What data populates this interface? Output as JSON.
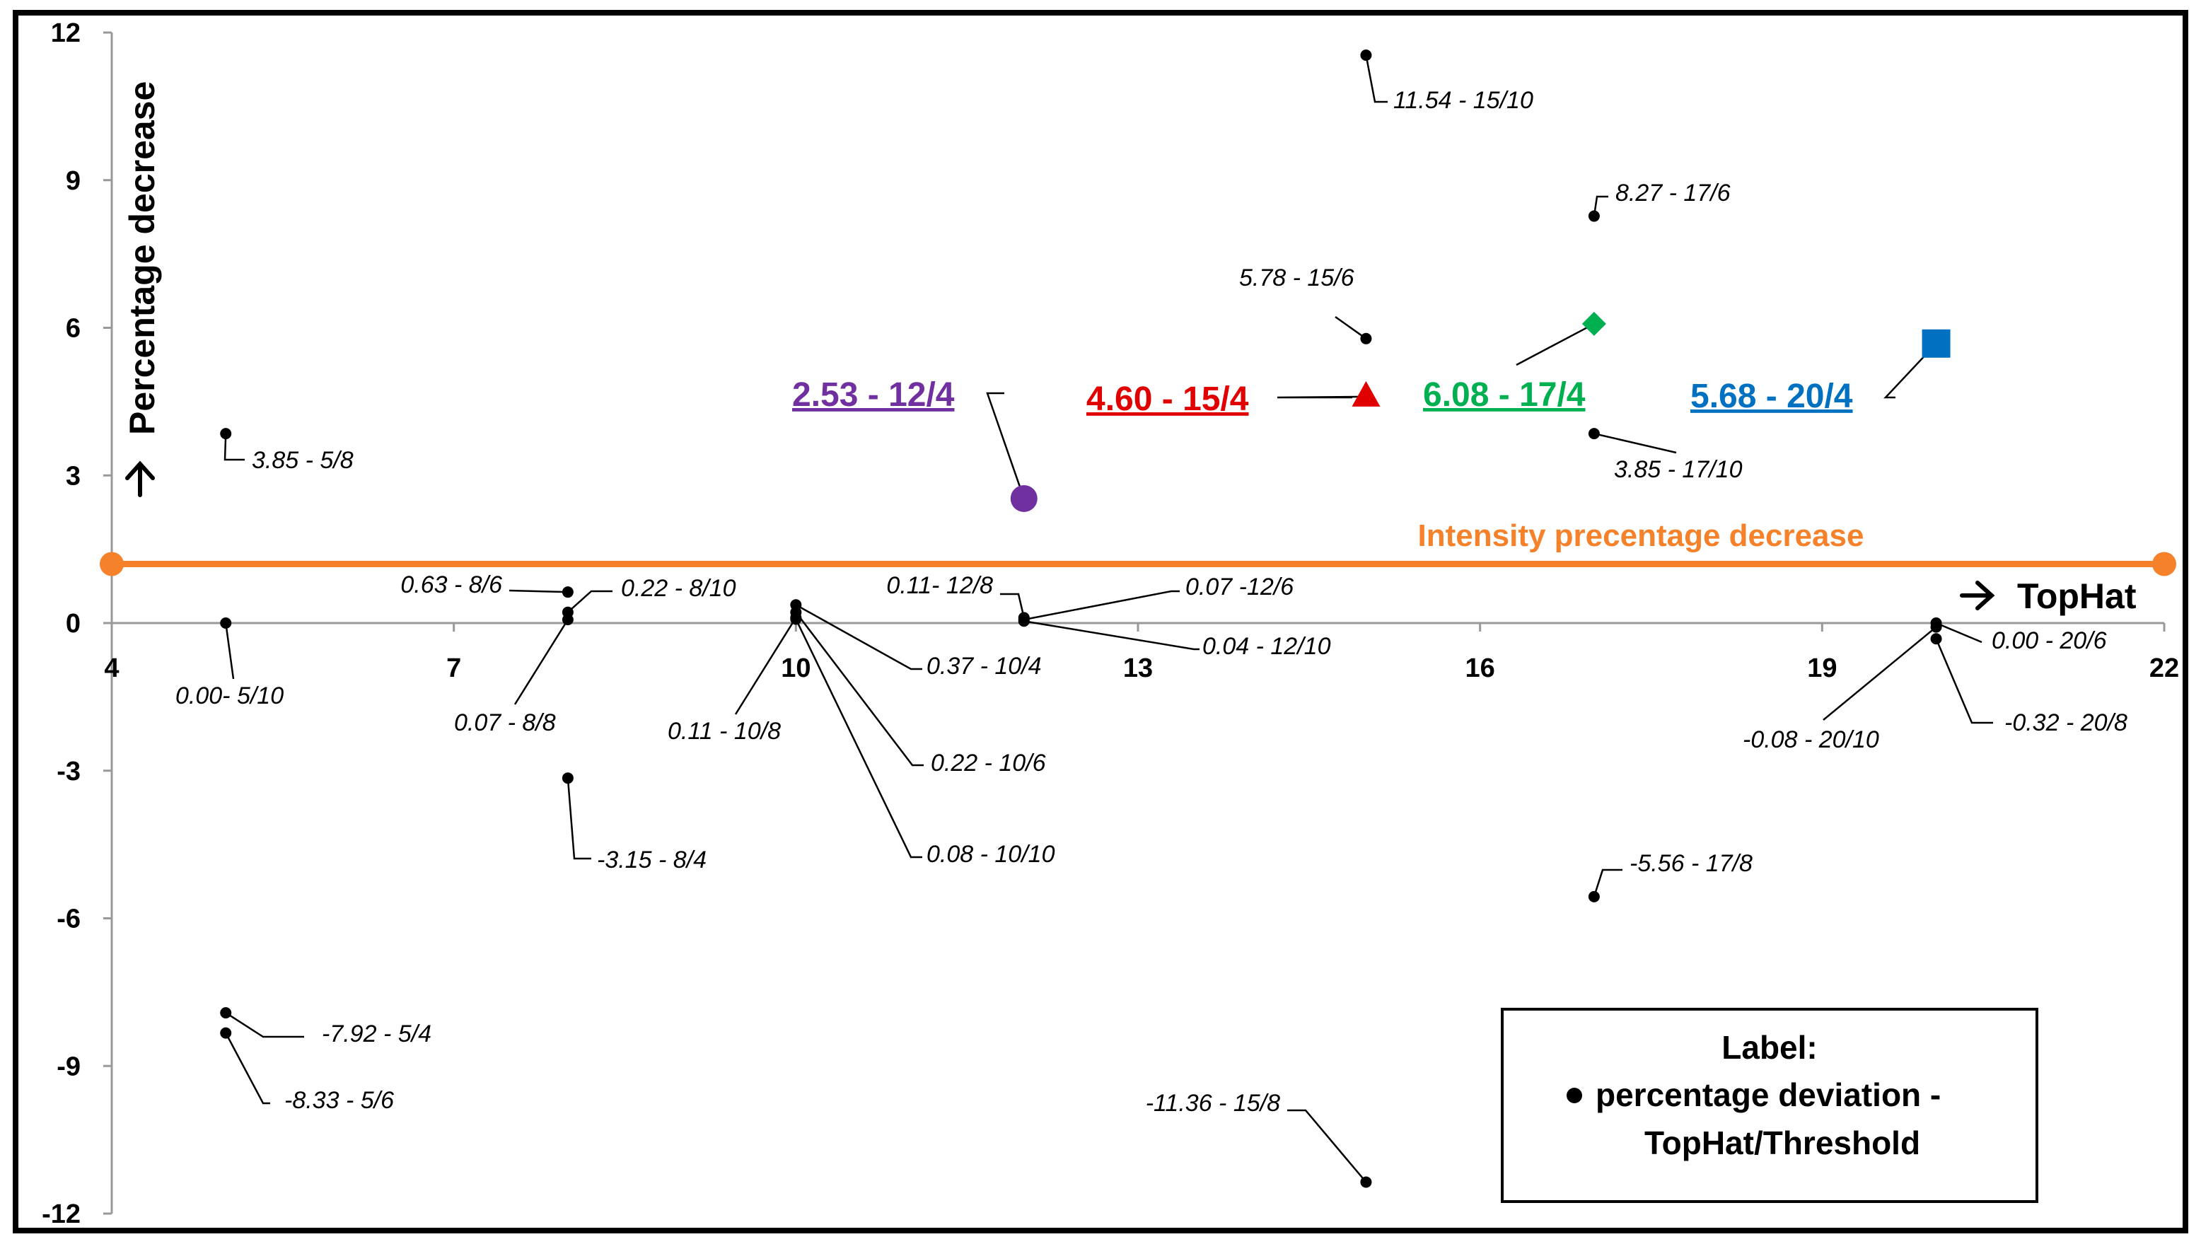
{
  "chart_data": {
    "type": "scatter",
    "title": "",
    "xlabel": "TopHat",
    "ylabel": "Percentage decrease",
    "xlim": [
      4,
      22
    ],
    "ylim": [
      -12,
      12
    ],
    "xticks": [
      4,
      7,
      10,
      13,
      16,
      19,
      22
    ],
    "yticks": [
      12,
      9,
      6,
      3,
      0,
      -3,
      -6,
      -9,
      -12
    ],
    "xtick_labels": [
      "4",
      "7",
      "10",
      "13",
      "16",
      "19",
      "22"
    ],
    "ytick_labels": [
      "12",
      "9",
      "6",
      "3",
      "0",
      "-3",
      "-6",
      "-9",
      "-12"
    ],
    "grid": false,
    "reference_line": {
      "y": 1.2,
      "label": "Intensity precentage decrease",
      "color": "#F5822A"
    },
    "points": [
      {
        "x": 5,
        "y": 3.85,
        "label": "3.85 - 5/8"
      },
      {
        "x": 5,
        "y": 0.0,
        "label": "0.00- 5/10"
      },
      {
        "x": 5,
        "y": -7.92,
        "label": "-7.92 - 5/4"
      },
      {
        "x": 5,
        "y": -8.33,
        "label": "-8.33 - 5/6"
      },
      {
        "x": 8,
        "y": 0.63,
        "label": "0.63 - 8/6"
      },
      {
        "x": 8,
        "y": 0.22,
        "label": "0.22 - 8/10"
      },
      {
        "x": 8,
        "y": 0.07,
        "label": "0.07 - 8/8"
      },
      {
        "x": 8,
        "y": -3.15,
        "label": "-3.15 - 8/4"
      },
      {
        "x": 10,
        "y": 0.37,
        "label": "0.37 - 10/4"
      },
      {
        "x": 10,
        "y": 0.22,
        "label": "0.22 - 10/6"
      },
      {
        "x": 10,
        "y": 0.11,
        "label": "0.11 - 10/8"
      },
      {
        "x": 10,
        "y": 0.08,
        "label": "0.08 - 10/10"
      },
      {
        "x": 12,
        "y": 0.11,
        "label": "0.11- 12/8"
      },
      {
        "x": 12,
        "y": 0.07,
        "label": "0.07 -12/6"
      },
      {
        "x": 12,
        "y": 0.04,
        "label": "0.04 - 12/10"
      },
      {
        "x": 15,
        "y": 11.54,
        "label": "11.54 - 15/10"
      },
      {
        "x": 15,
        "y": 5.78,
        "label": "5.78 - 15/6"
      },
      {
        "x": 15,
        "y": -11.36,
        "label": "-11.36 - 15/8"
      },
      {
        "x": 17,
        "y": 8.27,
        "label": "8.27 - 17/6"
      },
      {
        "x": 17,
        "y": 3.85,
        "label": "3.85 - 17/10"
      },
      {
        "x": 17,
        "y": -5.56,
        "label": "-5.56 - 17/8"
      },
      {
        "x": 20,
        "y": 0.0,
        "label": "0.00 - 20/6"
      },
      {
        "x": 20,
        "y": -0.08,
        "label": "-0.08 - 20/10"
      },
      {
        "x": 20,
        "y": -0.32,
        "label": "-0.32 - 20/8"
      }
    ],
    "highlight_points": [
      {
        "x": 12,
        "y": 2.53,
        "label": "2.53 - 12/4",
        "color": "#7030A0",
        "marker": "circle"
      },
      {
        "x": 15,
        "y": 4.6,
        "label": "4.60 - 15/4",
        "color": "#E00000",
        "marker": "triangle"
      },
      {
        "x": 17,
        "y": 6.08,
        "label": "6.08 - 17/4",
        "color": "#00B050",
        "marker": "diamond"
      },
      {
        "x": 20,
        "y": 5.68,
        "label": "5.68 - 20/4",
        "color": "#0070C0",
        "marker": "square"
      }
    ],
    "legend": {
      "position": "bottom-right",
      "title": "Label:",
      "line1": "percentage deviation -",
      "line2": "TopHat/Threshold"
    }
  }
}
